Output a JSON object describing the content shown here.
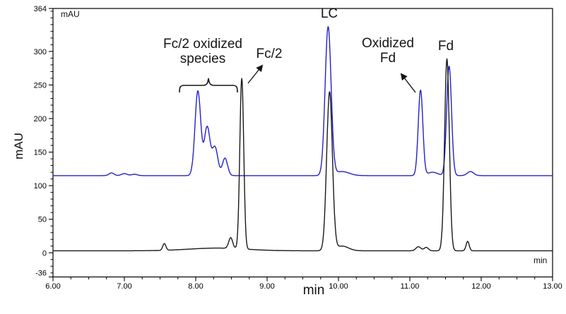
{
  "chart_data": {
    "type": "line",
    "title": "",
    "xlabel": "min",
    "ylabel": "mAU",
    "grid": false,
    "legend": "none",
    "inset_labels": {
      "top_left": "mAU",
      "bottom_right": "min"
    },
    "x_axis": {
      "min": 6.0,
      "max": 13.0,
      "minor_tick_step": 0.25,
      "major_ticks": [
        {
          "v": 6.0,
          "label": "6.00"
        },
        {
          "v": 7.0,
          "label": "7.00"
        },
        {
          "v": 8.0,
          "label": "8.00"
        },
        {
          "v": 9.0,
          "label": "9.00"
        },
        {
          "v": 10.0,
          "label": "10.00"
        },
        {
          "v": 11.0,
          "label": "11.00"
        },
        {
          "v": 12.0,
          "label": "12.00"
        },
        {
          "v": 13.0,
          "label": "13.00"
        }
      ]
    },
    "y_axis": {
      "min": -36,
      "max": 364,
      "minor_tick_step": 10,
      "major_ticks": [
        {
          "v": 364,
          "label": "364"
        },
        {
          "v": 300,
          "label": "300"
        },
        {
          "v": 250,
          "label": "250"
        },
        {
          "v": 200,
          "label": "200"
        },
        {
          "v": 150,
          "label": "150"
        },
        {
          "v": 100,
          "label": "100"
        },
        {
          "v": 50,
          "label": "50"
        },
        {
          "v": 0,
          "label": "0"
        },
        {
          "v": -36,
          "label": "-36"
        }
      ]
    },
    "series": [
      {
        "name": "blue-trace",
        "color": "#2222c8",
        "baseline_mau": 115,
        "peaks": [
          {
            "rt": 6.82,
            "apex_mau": 119,
            "sigma": 0.035
          },
          {
            "rt": 7.0,
            "apex_mau": 118,
            "sigma": 0.04
          },
          {
            "rt": 7.14,
            "apex_mau": 117,
            "sigma": 0.04
          },
          {
            "rt": 8.03,
            "apex_mau": 241,
            "sigma": 0.04,
            "label": "Fc/2 oxidized species"
          },
          {
            "rt": 8.16,
            "apex_mau": 187,
            "sigma": 0.04,
            "label": "Fc/2 oxidized species"
          },
          {
            "rt": 8.27,
            "apex_mau": 157,
            "sigma": 0.04,
            "label": "Fc/2 oxidized species"
          },
          {
            "rt": 8.41,
            "apex_mau": 141,
            "sigma": 0.036,
            "label": "Fc/2 oxidized species"
          },
          {
            "rt": 9.855,
            "apex_mau": 336,
            "sigma": 0.042,
            "label": "LC"
          },
          {
            "rt": 10.05,
            "apex_mau": 121,
            "sigma": 0.1
          },
          {
            "rt": 11.15,
            "apex_mau": 242,
            "sigma": 0.032,
            "label": "Oxidized Fd"
          },
          {
            "rt": 11.32,
            "apex_mau": 120,
            "sigma": 0.07
          },
          {
            "rt": 11.55,
            "apex_mau": 278,
            "sigma": 0.034,
            "label": "Fd"
          },
          {
            "rt": 11.85,
            "apex_mau": 121,
            "sigma": 0.045
          }
        ]
      },
      {
        "name": "black-trace",
        "color": "#1a1a1a",
        "baseline_mau": 3,
        "peaks": [
          {
            "rt": 7.56,
            "apex_mau": 13,
            "sigma": 0.022
          },
          {
            "rt": 8.3,
            "apex_mau": 7,
            "sigma": 0.4
          },
          {
            "rt": 8.49,
            "apex_mau": 19,
            "sigma": 0.028
          },
          {
            "rt": 8.645,
            "apex_mau": 257,
            "sigma": 0.027,
            "label": "Fc/2"
          },
          {
            "rt": 9.875,
            "apex_mau": 239,
            "sigma": 0.04,
            "label": "LC"
          },
          {
            "rt": 10.05,
            "apex_mau": 10,
            "sigma": 0.09
          },
          {
            "rt": 11.12,
            "apex_mau": 9,
            "sigma": 0.035
          },
          {
            "rt": 11.23,
            "apex_mau": 8,
            "sigma": 0.03
          },
          {
            "rt": 11.52,
            "apex_mau": 289,
            "sigma": 0.033,
            "label": "Fd"
          },
          {
            "rt": 11.81,
            "apex_mau": 17,
            "sigma": 0.022
          }
        ]
      }
    ],
    "annotations": [
      {
        "id": "fc2-oxidized-species",
        "line1": "Fc/2 oxidized",
        "line2": "species"
      },
      {
        "id": "fc2",
        "text": "Fc/2"
      },
      {
        "id": "lc",
        "text": "LC"
      },
      {
        "id": "oxidized-fd",
        "line1": "Oxidized",
        "line2": "Fd"
      },
      {
        "id": "fd",
        "text": "Fd"
      }
    ]
  }
}
